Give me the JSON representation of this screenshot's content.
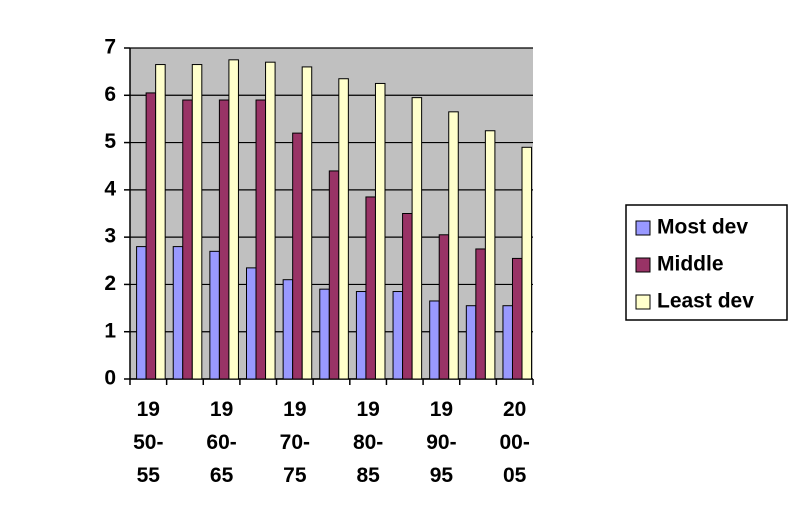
{
  "chart_data": {
    "type": "bar",
    "categories": [
      "1950-55",
      null,
      "1960-65",
      null,
      "1970-75",
      null,
      "1980-85",
      null,
      "1990-95",
      null,
      "2000-05"
    ],
    "series": [
      {
        "name": "Most dev",
        "color": "#9999ff",
        "values": [
          2.8,
          2.8,
          2.7,
          2.35,
          2.1,
          1.9,
          1.85,
          1.85,
          1.65,
          1.55,
          1.55
        ]
      },
      {
        "name": "Middle",
        "color": "#993366",
        "values": [
          6.05,
          5.9,
          5.9,
          5.9,
          5.2,
          4.4,
          3.85,
          3.5,
          3.05,
          2.75,
          2.55
        ]
      },
      {
        "name": "Least dev",
        "color": "#ffffcc",
        "values": [
          6.65,
          6.65,
          6.75,
          6.7,
          6.6,
          6.35,
          6.25,
          5.95,
          5.65,
          5.25,
          4.9
        ]
      }
    ],
    "ylim": [
      0,
      7
    ],
    "yticks": [
      0,
      1,
      2,
      3,
      4,
      5,
      6,
      7
    ],
    "grid": true
  }
}
